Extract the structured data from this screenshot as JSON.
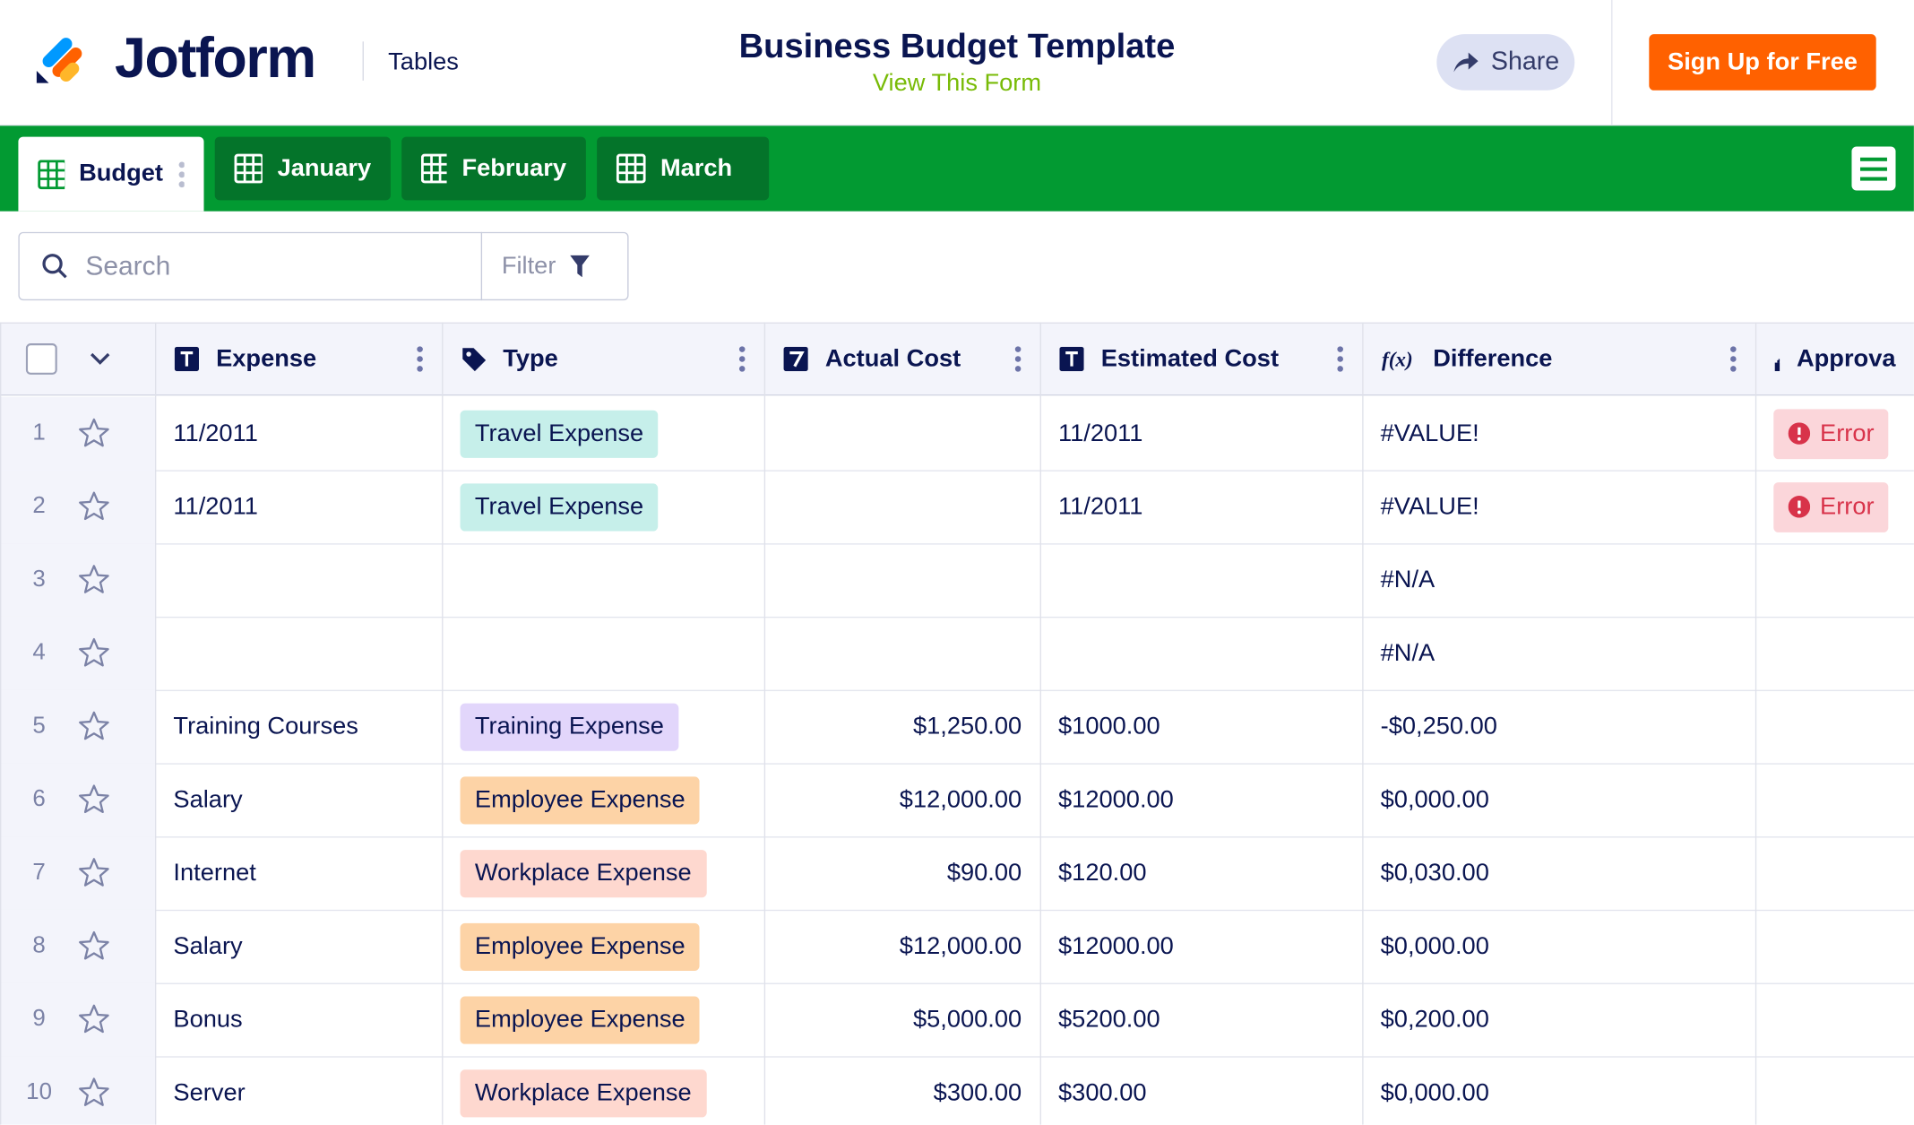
{
  "header": {
    "logo": "Jotform",
    "product": "Tables",
    "title": "Business Budget Template",
    "link": "View This Form",
    "share": "Share",
    "signup": "Sign Up for Free"
  },
  "tabs": [
    "Budget",
    "January",
    "February",
    "March"
  ],
  "search": {
    "placeholder": "Search",
    "filter": "Filter"
  },
  "table": {
    "columns": [
      "Expense",
      "Type",
      "Actual Cost",
      "Estimated Cost",
      "Difference",
      "Approva"
    ],
    "rows": [
      {
        "number": 1,
        "expense": "11/2011",
        "type": {
          "label": "Travel Expense",
          "color": "#c6efea"
        },
        "actual": null,
        "estimated": "11/2011",
        "difference": "#VALUE!",
        "approval": "Error"
      },
      {
        "number": 2,
        "expense": "11/2011",
        "type": {
          "label": "Travel Expense",
          "color": "#c6efea"
        },
        "actual": null,
        "estimated": "11/2011",
        "difference": "#VALUE!",
        "approval": "Error"
      },
      {
        "number": 3,
        "expense": null,
        "type": null,
        "actual": null,
        "estimated": null,
        "difference": "#N/A",
        "approval": null
      },
      {
        "number": 4,
        "expense": null,
        "type": null,
        "actual": null,
        "estimated": null,
        "difference": "#N/A",
        "approval": null
      },
      {
        "number": 5,
        "expense": "Training Courses",
        "type": {
          "label": "Training Expense",
          "color": "#e2d6fb"
        },
        "actual": "$1,250.00",
        "estimated": "$1000.00",
        "difference": "-$0,250.00",
        "approval": null
      },
      {
        "number": 6,
        "expense": "Salary",
        "type": {
          "label": "Employee Expense",
          "color": "#fdd3a6"
        },
        "actual": "$12,000.00",
        "estimated": "$12000.00",
        "difference": "$0,000.00",
        "approval": null
      },
      {
        "number": 7,
        "expense": "Internet",
        "type": {
          "label": "Workplace Expense",
          "color": "#fed8cf"
        },
        "actual": "$90.00",
        "estimated": "$120.00",
        "difference": "$0,030.00",
        "approval": null
      },
      {
        "number": 8,
        "expense": "Salary",
        "type": {
          "label": "Employee Expense",
          "color": "#fdd3a6"
        },
        "actual": "$12,000.00",
        "estimated": "$12000.00",
        "difference": "$0,000.00",
        "approval": null
      },
      {
        "number": 9,
        "expense": "Bonus",
        "type": {
          "label": "Employee Expense",
          "color": "#fdd3a6"
        },
        "actual": "$5,000.00",
        "estimated": "$5200.00",
        "difference": "$0,200.00",
        "approval": null
      },
      {
        "number": 10,
        "expense": "Server",
        "type": {
          "label": "Workplace Expense",
          "color": "#fed8cf"
        },
        "actual": "$300.00",
        "estimated": "$300.00",
        "difference": "$0,000.00",
        "approval": null
      }
    ]
  }
}
